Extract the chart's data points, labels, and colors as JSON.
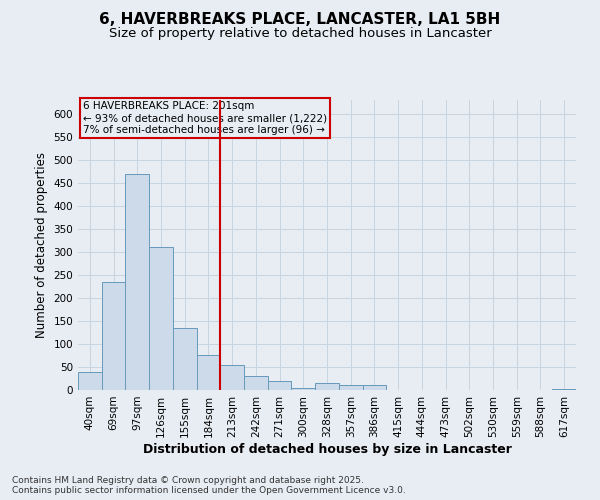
{
  "title1": "6, HAVERBREAKS PLACE, LANCASTER, LA1 5BH",
  "title2": "Size of property relative to detached houses in Lancaster",
  "xlabel": "Distribution of detached houses by size in Lancaster",
  "ylabel": "Number of detached properties",
  "categories": [
    "40sqm",
    "69sqm",
    "97sqm",
    "126sqm",
    "155sqm",
    "184sqm",
    "213sqm",
    "242sqm",
    "271sqm",
    "300sqm",
    "328sqm",
    "357sqm",
    "386sqm",
    "415sqm",
    "444sqm",
    "473sqm",
    "502sqm",
    "530sqm",
    "559sqm",
    "588sqm",
    "617sqm"
  ],
  "values": [
    40,
    235,
    470,
    310,
    135,
    75,
    55,
    30,
    20,
    5,
    15,
    10,
    10,
    0,
    0,
    0,
    0,
    0,
    0,
    0,
    3
  ],
  "bar_color": "#ccdaea",
  "bar_edge_color": "#6699bb",
  "bar_linewidth": 0.7,
  "grid_color": "#c8d4e0",
  "bg_color": "#e8edf4",
  "marker_line_color": "#cc0000",
  "marker_label": "6 HAVERBREAKS PLACE: 201sqm",
  "annotation_line1": "← 93% of detached houses are smaller (1,222)",
  "annotation_line2": "7% of semi-detached houses are larger (96) →",
  "annotation_box_color": "#cc0000",
  "ylim": [
    0,
    630
  ],
  "yticks": [
    0,
    50,
    100,
    150,
    200,
    250,
    300,
    350,
    400,
    450,
    500,
    550,
    600
  ],
  "footer1": "Contains HM Land Registry data © Crown copyright and database right 2025.",
  "footer2": "Contains public sector information licensed under the Open Government Licence v3.0.",
  "title_fontsize": 11,
  "subtitle_fontsize": 9.5,
  "axis_label_fontsize": 8.5,
  "tick_fontsize": 7.5,
  "annotation_fontsize": 7.5,
  "footer_fontsize": 6.5
}
